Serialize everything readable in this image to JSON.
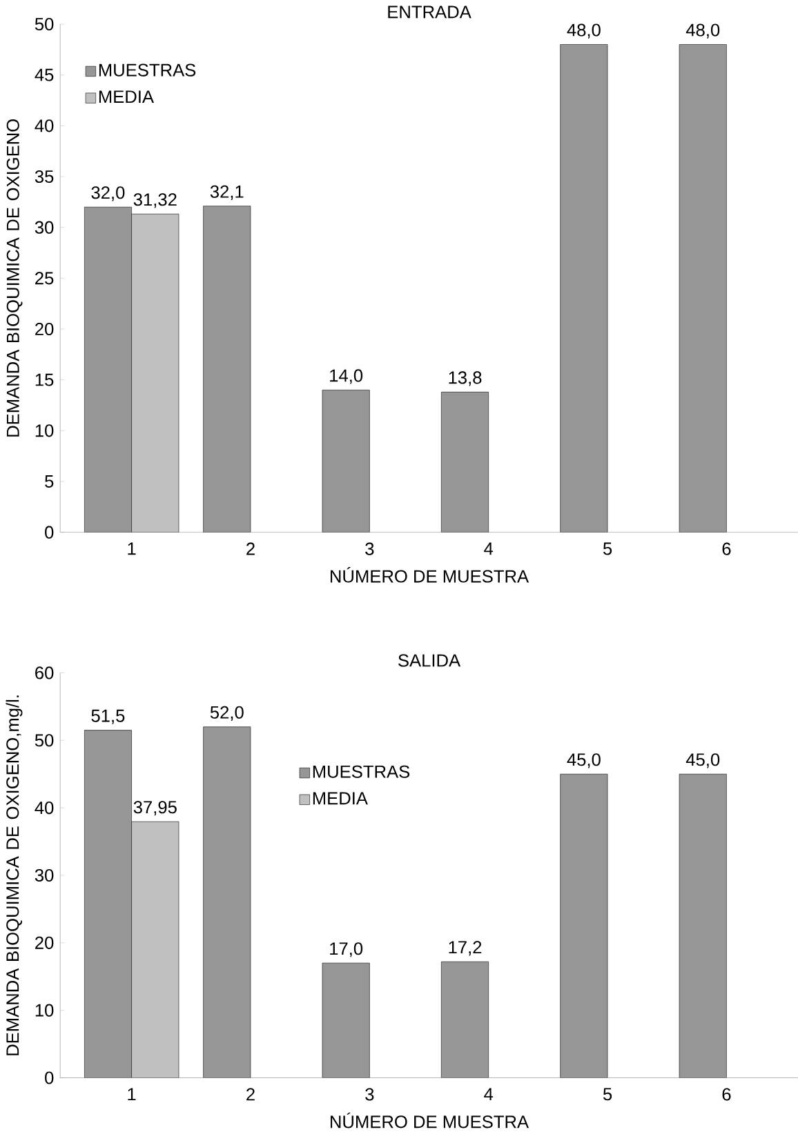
{
  "chart_data": [
    {
      "type": "bar",
      "title": "ENTRADA",
      "xlabel": "NÚMERO DE MUESTRA",
      "ylabel": "DEMANDA BIOQUIMICA DE OXIGENO",
      "categories": [
        "1",
        "2",
        "3",
        "4",
        "5",
        "6"
      ],
      "series": [
        {
          "name": "MUESTRAS",
          "color": "#969696",
          "values": [
            32.0,
            32.1,
            14.0,
            13.8,
            48.0,
            48.0
          ],
          "value_labels": [
            "32,0",
            "32,1",
            "14,0",
            "13,8",
            "48,0",
            "48,0"
          ]
        },
        {
          "name": "MEDIA",
          "color": "#c0c0c0",
          "values": [
            31.32,
            null,
            null,
            null,
            null,
            null
          ],
          "value_labels": [
            "31,32",
            null,
            null,
            null,
            null,
            null
          ]
        }
      ],
      "ylim": [
        0,
        50
      ],
      "yticks": [
        0,
        5,
        10,
        15,
        20,
        25,
        30,
        35,
        40,
        45,
        50
      ],
      "legend": "top left"
    },
    {
      "type": "bar",
      "title": "SALIDA",
      "xlabel": "NÚMERO DE MUESTRA",
      "ylabel": "DEMANDA BIOQUIMICA DE OXIGENO,mg/l.",
      "categories": [
        "1",
        "2",
        "3",
        "4",
        "5",
        "6"
      ],
      "series": [
        {
          "name": "MUESTRAS",
          "color": "#969696",
          "values": [
            51.5,
            52.0,
            17.0,
            17.2,
            45.0,
            45.0
          ],
          "value_labels": [
            "51,5",
            "52,0",
            "17,0",
            "17,2",
            "45,0",
            "45,0"
          ]
        },
        {
          "name": "MEDIA",
          "color": "#c0c0c0",
          "values": [
            37.95,
            null,
            null,
            null,
            null,
            null
          ],
          "value_labels": [
            "37,95",
            null,
            null,
            null,
            null,
            null
          ]
        }
      ],
      "ylim": [
        0,
        60
      ],
      "yticks": [
        0,
        10,
        20,
        30,
        40,
        50,
        60
      ],
      "legend": "center"
    }
  ]
}
